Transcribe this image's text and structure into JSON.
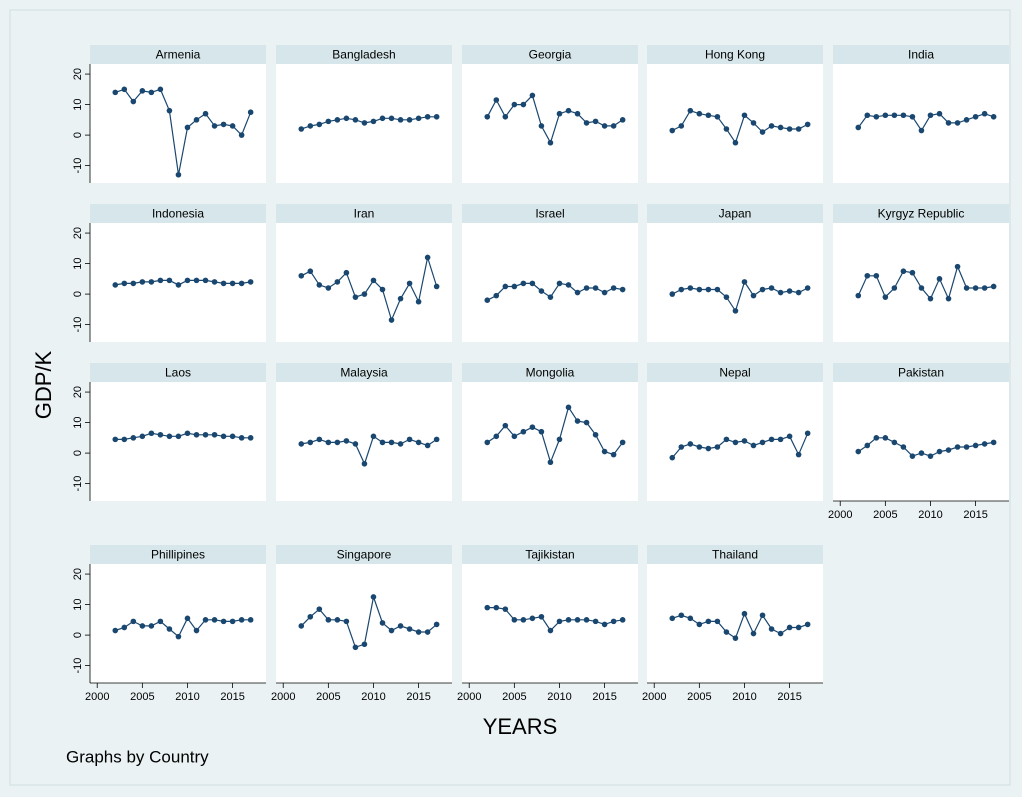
{
  "chart_data": {
    "type": "line",
    "color": "#1a476f",
    "y_label": "GDP/K",
    "x_label": "YEARS",
    "note": "Graphs by Country",
    "x": [
      2002,
      2003,
      2004,
      2005,
      2006,
      2007,
      2008,
      2009,
      2010,
      2011,
      2012,
      2013,
      2014,
      2015,
      2016,
      2017
    ],
    "xlim": [
      1999.2,
      2018.7
    ],
    "xticks": [
      2000,
      2005,
      2010,
      2015
    ],
    "ylim": [
      -15.7,
      23.3
    ],
    "yticks": [
      -10,
      0,
      10,
      20
    ],
    "series": [
      {
        "name": "Armenia",
        "values": [
          14,
          15,
          11,
          14.5,
          14,
          15,
          8,
          -13,
          2.5,
          5,
          7,
          3,
          3.5,
          3,
          0,
          7.5
        ]
      },
      {
        "name": "Bangladesh",
        "values": [
          2,
          3,
          3.5,
          4.5,
          5,
          5.5,
          5,
          4,
          4.5,
          5.5,
          5.5,
          5,
          5,
          5.5,
          6,
          6
        ]
      },
      {
        "name": "Georgia",
        "values": [
          6,
          11.5,
          6,
          10,
          10,
          13,
          3,
          -2.5,
          7,
          8,
          7,
          4,
          4.5,
          3,
          3,
          5
        ]
      },
      {
        "name": "Hong Kong",
        "values": [
          1.5,
          3,
          8,
          7,
          6.5,
          6,
          2,
          -2.5,
          6.5,
          4,
          1,
          3,
          2.5,
          2,
          2,
          3.5
        ]
      },
      {
        "name": "India",
        "values": [
          2.5,
          6.5,
          6,
          6.5,
          6.5,
          6.5,
          6,
          1.5,
          6.5,
          7,
          4,
          4,
          5,
          6,
          7,
          6
        ]
      },
      {
        "name": "Indonesia",
        "values": [
          3,
          3.5,
          3.5,
          4,
          4,
          4.5,
          4.5,
          3,
          4.5,
          4.5,
          4.5,
          4,
          3.5,
          3.5,
          3.5,
          4
        ]
      },
      {
        "name": "Iran",
        "values": [
          6,
          7.5,
          3,
          2,
          4,
          7,
          -1,
          0,
          4.5,
          1.5,
          -8.5,
          -1.5,
          3.5,
          -2.5,
          12,
          2.5
        ]
      },
      {
        "name": "Israel",
        "values": [
          -2,
          -0.5,
          2.5,
          2.5,
          3.5,
          3.5,
          1,
          -1,
          3.5,
          3,
          0.5,
          2,
          2,
          0.5,
          2,
          1.5
        ]
      },
      {
        "name": "Japan",
        "values": [
          0,
          1.5,
          2,
          1.5,
          1.5,
          1.5,
          -1,
          -5.5,
          4,
          -0.5,
          1.5,
          2,
          0.5,
          1,
          0.5,
          2
        ]
      },
      {
        "name": "Kyrgyz Republic",
        "values": [
          -0.5,
          6,
          6,
          -1,
          2,
          7.5,
          7,
          2,
          -1.5,
          5,
          -1.5,
          9,
          2,
          2,
          2,
          2.5
        ]
      },
      {
        "name": "Laos",
        "values": [
          4.5,
          4.5,
          5,
          5.5,
          6.5,
          6,
          5.5,
          5.5,
          6.5,
          6,
          6,
          6,
          5.5,
          5.5,
          5,
          5
        ]
      },
      {
        "name": "Malaysia",
        "values": [
          3,
          3.5,
          4.5,
          3.5,
          3.5,
          4,
          3,
          -3.5,
          5.5,
          3.5,
          3.5,
          3,
          4.5,
          3.5,
          2.5,
          4.5
        ]
      },
      {
        "name": "Mongolia",
        "values": [
          3.5,
          5.5,
          9,
          5.5,
          7,
          8.5,
          7,
          -3,
          4.5,
          15,
          10.5,
          10,
          6,
          0.5,
          -0.5,
          3.5
        ]
      },
      {
        "name": "Nepal",
        "values": [
          -1.5,
          2,
          3,
          2,
          1.5,
          2,
          4.5,
          3.5,
          4,
          2.5,
          3.5,
          4.5,
          4.5,
          5.5,
          -0.5,
          6.5
        ]
      },
      {
        "name": "Pakistan",
        "values": [
          0.5,
          2.5,
          5,
          5,
          3.5,
          2,
          -1,
          0,
          -1,
          0.5,
          1,
          2,
          2,
          2.5,
          3,
          3.5
        ]
      },
      {
        "name": "Phillipines",
        "values": [
          1.5,
          2.5,
          4.5,
          3,
          3,
          4.5,
          2,
          -0.5,
          5.5,
          1.5,
          5,
          5,
          4.5,
          4.5,
          5,
          5
        ]
      },
      {
        "name": "Singapore",
        "values": [
          3,
          6,
          8.5,
          5,
          5,
          4.5,
          -4,
          -3,
          12.5,
          4,
          1.5,
          3,
          2,
          1,
          1,
          3.5
        ]
      },
      {
        "name": "Tajikistan",
        "values": [
          9,
          9,
          8.5,
          5,
          5,
          5.5,
          6,
          1.5,
          4.5,
          5,
          5,
          5,
          4.5,
          3.5,
          4.5,
          5
        ]
      },
      {
        "name": "Thailand",
        "values": [
          5.5,
          6.5,
          5.5,
          3.5,
          4.5,
          4.5,
          1,
          -1,
          7,
          0.5,
          6.5,
          2,
          0.5,
          2.5,
          2.5,
          3.5
        ]
      }
    ]
  }
}
